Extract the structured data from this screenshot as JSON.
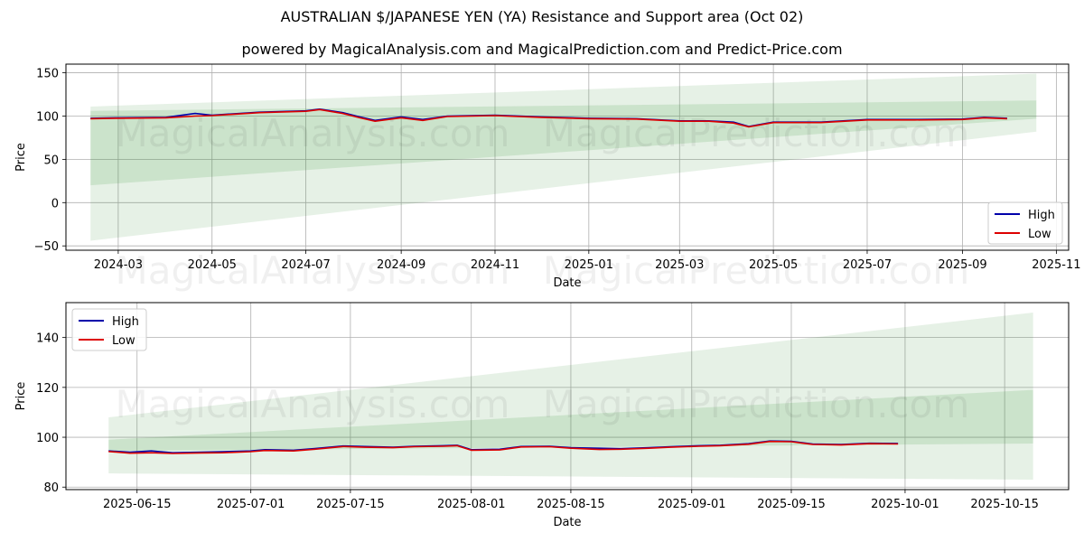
{
  "title": "AUSTRALIAN $/JAPANESE YEN (YA) Resistance and Support area (Oct 02)",
  "subtitle": "powered by MagicalAnalysis.com and MagicalPrediction.com and Predict-Price.com",
  "watermarks": [
    "MagicalAnalysis.com",
    "MagicalPrediction.com"
  ],
  "colors": {
    "high": "#0000aa",
    "low": "#dd0000",
    "band": "#2e8b2e",
    "grid": "#b0b0b0"
  },
  "chart_data": [
    {
      "type": "line",
      "xlabel": "Date",
      "ylabel": "Price",
      "xlim": [
        "2024-01-27",
        "2025-11-09"
      ],
      "ylim": [
        -55,
        160
      ],
      "x_ticks": [
        "2024-03-01",
        "2024-05-01",
        "2024-07-01",
        "2024-09-01",
        "2024-11-01",
        "2025-01-01",
        "2025-03-01",
        "2025-05-01",
        "2025-07-01",
        "2025-09-01",
        "2025-11-01"
      ],
      "x_tick_labels": [
        "2024-03",
        "2024-05",
        "2024-07",
        "2024-09",
        "2024-11",
        "2025-01",
        "2025-03",
        "2025-05",
        "2025-07",
        "2025-09",
        "2025-11"
      ],
      "y_ticks": [
        -50,
        0,
        50,
        100,
        150
      ],
      "y_tick_labels": [
        "−50",
        "0",
        "50",
        "100",
        "150"
      ],
      "grid": true,
      "legend": "lower right",
      "legend_entries": [
        "High",
        "Low"
      ],
      "bands": [
        {
          "x": [
            "2024-02-12",
            "2025-10-19"
          ],
          "upper": [
            111,
            149
          ],
          "lower": [
            -44,
            82
          ]
        },
        {
          "x": [
            "2024-02-12",
            "2025-10-19"
          ],
          "upper": [
            106,
            118
          ],
          "lower": [
            20,
            97
          ]
        }
      ],
      "series": [
        {
          "name": "High",
          "x": [
            "2024-02-12",
            "2024-03-01",
            "2024-04-01",
            "2024-04-20",
            "2024-05-01",
            "2024-06-01",
            "2024-07-01",
            "2024-07-10",
            "2024-07-25",
            "2024-08-05",
            "2024-08-15",
            "2024-09-01",
            "2024-09-15",
            "2024-10-01",
            "2024-11-01",
            "2024-12-01",
            "2025-01-01",
            "2025-02-01",
            "2025-03-01",
            "2025-03-20",
            "2025-04-05",
            "2025-04-15",
            "2025-05-01",
            "2025-06-01",
            "2025-07-01",
            "2025-08-01",
            "2025-09-01",
            "2025-09-15",
            "2025-09-30"
          ],
          "values": [
            97.5,
            98,
            98.5,
            103,
            101,
            104.5,
            106,
            108,
            104,
            99,
            95,
            99,
            96,
            100,
            101,
            99,
            97.5,
            97,
            94.5,
            94.5,
            93,
            88,
            93,
            93,
            96,
            96,
            96.5,
            98.5,
            97.5
          ]
        },
        {
          "name": "Low",
          "x": [
            "2024-02-12",
            "2024-03-01",
            "2024-04-01",
            "2024-04-20",
            "2024-05-01",
            "2024-06-01",
            "2024-07-01",
            "2024-07-10",
            "2024-07-25",
            "2024-08-05",
            "2024-08-15",
            "2024-09-01",
            "2024-09-15",
            "2024-10-01",
            "2024-11-01",
            "2024-12-01",
            "2025-01-01",
            "2025-02-01",
            "2025-03-01",
            "2025-03-20",
            "2025-04-05",
            "2025-04-15",
            "2025-05-01",
            "2025-06-01",
            "2025-07-01",
            "2025-08-01",
            "2025-09-01",
            "2025-09-15",
            "2025-09-30"
          ],
          "values": [
            97,
            97.5,
            98,
            100,
            100.5,
            104,
            105.5,
            107.5,
            103,
            98,
            94,
            98,
            95,
            99.5,
            100.5,
            98.5,
            97,
            96.5,
            94,
            94,
            92,
            87.5,
            92.5,
            92.5,
            95.5,
            95.5,
            96,
            98,
            97
          ]
        }
      ]
    },
    {
      "type": "line",
      "xlabel": "Date",
      "ylabel": "Price",
      "xlim": [
        "2025-06-05",
        "2025-10-24"
      ],
      "ylim": [
        79,
        154
      ],
      "x_ticks": [
        "2025-06-15",
        "2025-07-01",
        "2025-07-15",
        "2025-08-01",
        "2025-08-15",
        "2025-09-01",
        "2025-09-15",
        "2025-10-01",
        "2025-10-15"
      ],
      "x_tick_labels": [
        "2025-06-15",
        "2025-07-01",
        "2025-07-15",
        "2025-08-01",
        "2025-08-15",
        "2025-09-01",
        "2025-09-15",
        "2025-10-01",
        "2025-10-15"
      ],
      "y_ticks": [
        80,
        100,
        120,
        140
      ],
      "y_tick_labels": [
        "80",
        "100",
        "120",
        "140"
      ],
      "grid": true,
      "legend": "upper left",
      "legend_entries": [
        "High",
        "Low"
      ],
      "bands": [
        {
          "x": [
            "2025-06-11",
            "2025-10-19"
          ],
          "upper": [
            108,
            150
          ],
          "lower": [
            85.5,
            83
          ]
        },
        {
          "x": [
            "2025-06-11",
            "2025-10-19"
          ],
          "upper": [
            99,
            119
          ],
          "lower": [
            94.5,
            97.5
          ]
        }
      ],
      "series": [
        {
          "name": "High",
          "x": [
            "2025-06-11",
            "2025-06-14",
            "2025-06-17",
            "2025-06-20",
            "2025-06-24",
            "2025-06-27",
            "2025-07-01",
            "2025-07-03",
            "2025-07-07",
            "2025-07-10",
            "2025-07-14",
            "2025-07-17",
            "2025-07-21",
            "2025-07-24",
            "2025-07-28",
            "2025-07-30",
            "2025-08-01",
            "2025-08-05",
            "2025-08-08",
            "2025-08-12",
            "2025-08-15",
            "2025-08-19",
            "2025-08-22",
            "2025-08-26",
            "2025-08-29",
            "2025-09-02",
            "2025-09-05",
            "2025-09-09",
            "2025-09-12",
            "2025-09-15",
            "2025-09-18",
            "2025-09-22",
            "2025-09-26",
            "2025-09-30"
          ],
          "values": [
            94.5,
            94,
            94.5,
            93.8,
            94,
            94.2,
            94.5,
            95,
            94.8,
            95.5,
            96.5,
            96.3,
            96,
            96.4,
            96.6,
            96.8,
            95,
            95.2,
            96.3,
            96.4,
            95.8,
            95.6,
            95.4,
            95.8,
            96.2,
            96.6,
            96.8,
            97.4,
            98.5,
            98.4,
            97.3,
            97.1,
            97.6,
            97.5
          ]
        },
        {
          "name": "Low",
          "x": [
            "2025-06-11",
            "2025-06-14",
            "2025-06-17",
            "2025-06-20",
            "2025-06-24",
            "2025-06-27",
            "2025-07-01",
            "2025-07-03",
            "2025-07-07",
            "2025-07-10",
            "2025-07-14",
            "2025-07-17",
            "2025-07-21",
            "2025-07-24",
            "2025-07-28",
            "2025-07-30",
            "2025-08-01",
            "2025-08-05",
            "2025-08-08",
            "2025-08-12",
            "2025-08-15",
            "2025-08-19",
            "2025-08-22",
            "2025-08-26",
            "2025-08-29",
            "2025-09-02",
            "2025-09-05",
            "2025-09-09",
            "2025-09-12",
            "2025-09-15",
            "2025-09-18",
            "2025-09-22",
            "2025-09-26",
            "2025-09-30"
          ],
          "values": [
            94.3,
            93.6,
            93.8,
            93.5,
            93.7,
            93.8,
            94.2,
            94.7,
            94.5,
            95.2,
            96.3,
            96,
            95.8,
            96.2,
            96.4,
            96.6,
            94.8,
            94.9,
            96.1,
            96.2,
            95.6,
            95.1,
            95.2,
            95.6,
            96,
            96.4,
            96.6,
            97.2,
            98.3,
            98.2,
            97.1,
            96.9,
            97.4,
            97.3
          ]
        }
      ]
    }
  ]
}
